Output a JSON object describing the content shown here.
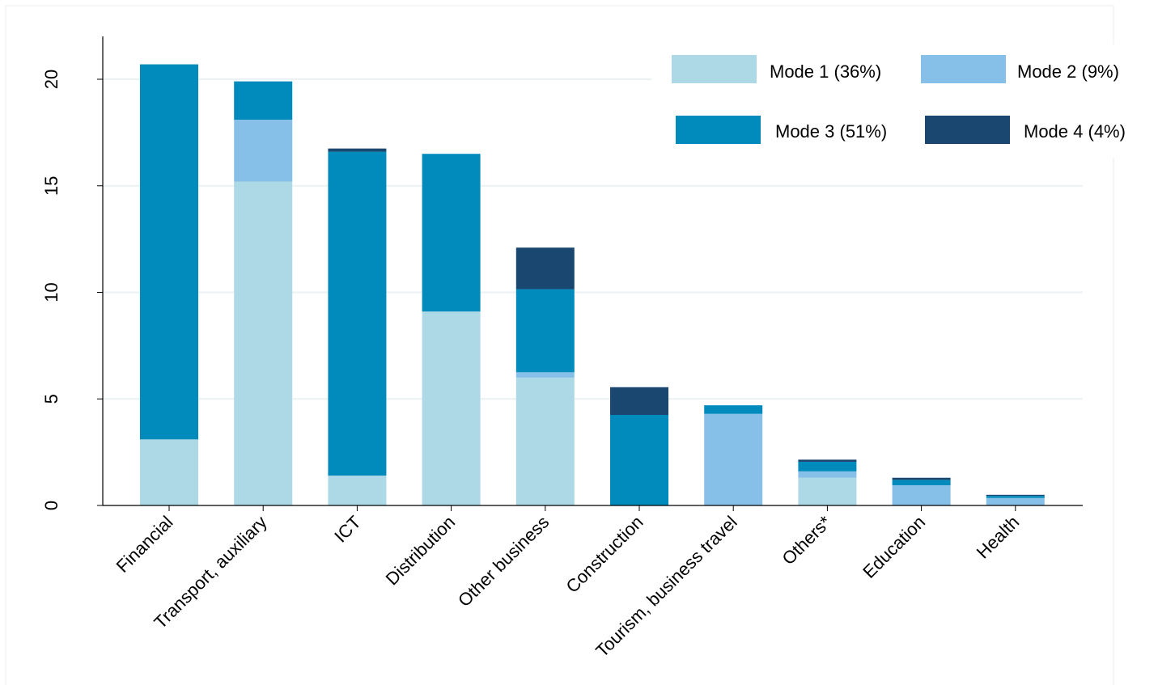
{
  "chart_data": {
    "type": "bar",
    "stacked": true,
    "title": "",
    "xlabel": "",
    "ylabel": "",
    "ylim": [
      0,
      22
    ],
    "yticks": [
      "0",
      "5",
      "10",
      "15",
      "20"
    ],
    "grid": true,
    "legend_position": "top-right",
    "categories": [
      "Financial",
      "Transport, auxiliary",
      "ICT",
      "Distribution",
      "Other business",
      "Construction",
      "Tourism, business travel",
      "Others*",
      "Education",
      "Health"
    ],
    "series": [
      {
        "name": "Mode 1 (36%)",
        "color": "#add8e6",
        "values": [
          3.1,
          15.2,
          1.4,
          9.1,
          6.0,
          0.0,
          0.0,
          1.3,
          0.0,
          0.0
        ]
      },
      {
        "name": "Mode 2 (9%)",
        "color": "#86bfe8",
        "values": [
          0.0,
          2.9,
          0.0,
          0.0,
          0.25,
          0.0,
          4.3,
          0.3,
          0.95,
          0.35
        ]
      },
      {
        "name": "Mode 3 (51%)",
        "color": "#008bbc",
        "values": [
          17.6,
          1.8,
          15.2,
          7.4,
          3.9,
          4.25,
          0.4,
          0.45,
          0.25,
          0.1
        ]
      },
      {
        "name": "Mode 4 (4%)",
        "color": "#1a476f",
        "values": [
          0.0,
          0.0,
          0.15,
          0.0,
          1.95,
          1.3,
          0.0,
          0.1,
          0.1,
          0.05
        ]
      }
    ]
  }
}
